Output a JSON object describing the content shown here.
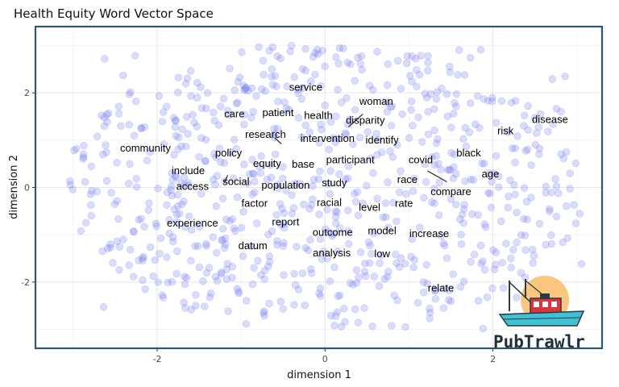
{
  "chart_data": {
    "type": "scatter",
    "title": "Health Equity Word Vector Space",
    "xlabel": "dimension 1",
    "ylabel": "dimension 2",
    "xlim": [
      -3.45,
      3.3
    ],
    "ylim": [
      -3.4,
      3.4
    ],
    "x_ticks": [
      -2,
      0,
      2
    ],
    "y_ticks": [
      -2,
      0,
      2
    ],
    "grid": true,
    "legend": "none",
    "point_color": "#7b83f0",
    "background_point_count": 760,
    "words": [
      {
        "label": "service",
        "x": -0.23,
        "y": 2.13
      },
      {
        "label": "woman",
        "x": 0.61,
        "y": 1.83
      },
      {
        "label": "care",
        "x": -1.08,
        "y": 1.57
      },
      {
        "label": "patient",
        "x": -0.56,
        "y": 1.59
      },
      {
        "label": "health",
        "x": -0.08,
        "y": 1.53
      },
      {
        "label": "disparity",
        "x": 0.48,
        "y": 1.43
      },
      {
        "label": "disease",
        "x": 2.68,
        "y": 1.45
      },
      {
        "label": "research",
        "x": -0.71,
        "y": 1.13
      },
      {
        "label": "intervention",
        "x": 0.03,
        "y": 1.05
      },
      {
        "label": "identify",
        "x": 0.68,
        "y": 1.01
      },
      {
        "label": "risk",
        "x": 2.15,
        "y": 1.21
      },
      {
        "label": "community",
        "x": -2.14,
        "y": 0.84
      },
      {
        "label": "policy",
        "x": -1.15,
        "y": 0.74
      },
      {
        "label": "black",
        "x": 1.71,
        "y": 0.74
      },
      {
        "label": "equity",
        "x": -0.69,
        "y": 0.52
      },
      {
        "label": "base",
        "x": -0.26,
        "y": 0.5
      },
      {
        "label": "participant",
        "x": 0.3,
        "y": 0.6
      },
      {
        "label": "covid",
        "x": 1.14,
        "y": 0.6
      },
      {
        "label": "include",
        "x": -1.63,
        "y": 0.37
      },
      {
        "label": "age",
        "x": 1.97,
        "y": 0.3
      },
      {
        "label": "social",
        "x": -1.06,
        "y": 0.14
      },
      {
        "label": "race",
        "x": 0.98,
        "y": 0.18
      },
      {
        "label": "access",
        "x": -1.58,
        "y": 0.03
      },
      {
        "label": "population",
        "x": -0.47,
        "y": 0.06
      },
      {
        "label": "study",
        "x": 0.11,
        "y": 0.11
      },
      {
        "label": "compare",
        "x": 1.5,
        "y": -0.08
      },
      {
        "label": "factor",
        "x": -0.84,
        "y": -0.32
      },
      {
        "label": "racial",
        "x": 0.05,
        "y": -0.31
      },
      {
        "label": "level",
        "x": 0.53,
        "y": -0.41
      },
      {
        "label": "rate",
        "x": 0.94,
        "y": -0.32
      },
      {
        "label": "experience",
        "x": -1.58,
        "y": -0.74
      },
      {
        "label": "report",
        "x": -0.47,
        "y": -0.72
      },
      {
        "label": "model",
        "x": 0.68,
        "y": -0.9
      },
      {
        "label": "outcome",
        "x": 0.09,
        "y": -0.94
      },
      {
        "label": "increase",
        "x": 1.24,
        "y": -0.96
      },
      {
        "label": "datum",
        "x": -0.86,
        "y": -1.22
      },
      {
        "label": "analysis",
        "x": 0.08,
        "y": -1.37
      },
      {
        "label": "low",
        "x": 0.68,
        "y": -1.39
      },
      {
        "label": "relate",
        "x": 1.38,
        "y": -2.11
      }
    ]
  },
  "logo": {
    "text": "PubTrawlr",
    "name": "pubtrawlr-logo"
  }
}
